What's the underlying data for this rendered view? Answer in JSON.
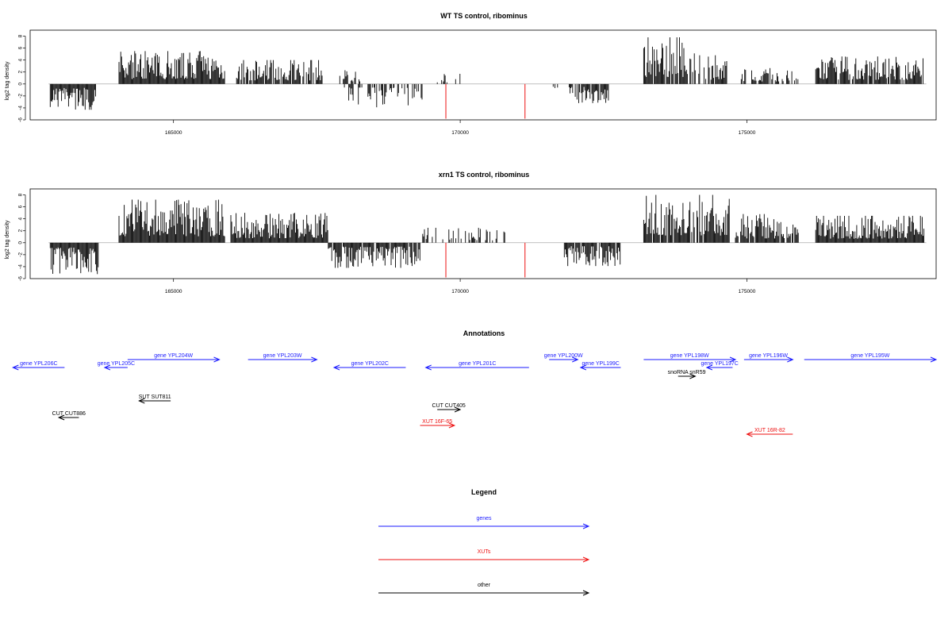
{
  "colors": {
    "gene": "#1a1aff",
    "xut": "#ee1111",
    "other": "#000000",
    "cut_marker": "#ee1111",
    "bar": "#000000",
    "zero_line": "#999999"
  },
  "chart_data": [
    {
      "type": "bar",
      "title": "WT TS control, ribominus",
      "ylabel": "log2 tag density",
      "ylim": [
        -6,
        9
      ],
      "yticks": [
        -6,
        -4,
        -2,
        0,
        2,
        4,
        6,
        8
      ],
      "xlim": [
        162500,
        178300
      ],
      "xticks": [
        165000,
        170000,
        175000
      ],
      "xticklabels": [
        "165000",
        "170000",
        "175000"
      ],
      "cut_markers": [
        169750,
        171130
      ],
      "segments": [
        {
          "x0": 162850,
          "x1": 163650,
          "sign": -1,
          "amp": 4.3,
          "density": 1.0
        },
        {
          "x0": 164050,
          "x1": 165900,
          "sign": 1,
          "amp": 5.5,
          "density": 1.0
        },
        {
          "x0": 166100,
          "x1": 167600,
          "sign": 1,
          "amp": 4.0,
          "density": 0.85
        },
        {
          "x0": 167900,
          "x1": 168300,
          "sign": 1,
          "amp": 2.3,
          "density": 0.4
        },
        {
          "x0": 167950,
          "x1": 169350,
          "sign": -1,
          "amp": 3.9,
          "density": 0.6
        },
        {
          "x0": 169600,
          "x1": 170100,
          "sign": 1,
          "amp": 1.8,
          "density": 0.3
        },
        {
          "x0": 171500,
          "x1": 171700,
          "sign": -1,
          "amp": 1.0,
          "density": 0.2
        },
        {
          "x0": 171900,
          "x1": 172600,
          "sign": -1,
          "amp": 3.2,
          "density": 0.85
        },
        {
          "x0": 173200,
          "x1": 174100,
          "sign": 1,
          "amp": 7.8,
          "density": 0.9
        },
        {
          "x0": 174100,
          "x1": 174650,
          "sign": 1,
          "amp": 4.8,
          "density": 0.8
        },
        {
          "x0": 174900,
          "x1": 175900,
          "sign": 1,
          "amp": 2.8,
          "density": 0.6
        },
        {
          "x0": 176200,
          "x1": 178100,
          "sign": 1,
          "amp": 4.6,
          "density": 0.9
        }
      ]
    },
    {
      "type": "bar",
      "title": "xrn1 TS control, ribominus",
      "ylabel": "log2 tag density",
      "ylim": [
        -6,
        9
      ],
      "yticks": [
        -6,
        -4,
        -2,
        0,
        2,
        4,
        6,
        8
      ],
      "xlim": [
        162500,
        178300
      ],
      "xticks": [
        165000,
        170000,
        175000
      ],
      "xticklabels": [
        "165000",
        "170000",
        "175000"
      ],
      "cut_markers": [
        169750,
        171130
      ],
      "segments": [
        {
          "x0": 162850,
          "x1": 163700,
          "sign": -1,
          "amp": 5.3,
          "density": 1.0
        },
        {
          "x0": 164050,
          "x1": 165900,
          "sign": 1,
          "amp": 7.2,
          "density": 1.0
        },
        {
          "x0": 166000,
          "x1": 167700,
          "sign": 1,
          "amp": 5.0,
          "density": 1.0
        },
        {
          "x0": 167700,
          "x1": 169300,
          "sign": -1,
          "amp": 4.2,
          "density": 0.9
        },
        {
          "x0": 169300,
          "x1": 170800,
          "sign": 1,
          "amp": 2.5,
          "density": 0.3
        },
        {
          "x0": 171800,
          "x1": 172800,
          "sign": -1,
          "amp": 3.9,
          "density": 0.9
        },
        {
          "x0": 173200,
          "x1": 174700,
          "sign": 1,
          "amp": 8.0,
          "density": 0.9
        },
        {
          "x0": 174800,
          "x1": 175900,
          "sign": 1,
          "amp": 4.8,
          "density": 0.9
        },
        {
          "x0": 176200,
          "x1": 178100,
          "sign": 1,
          "amp": 4.5,
          "density": 1.0
        }
      ]
    }
  ],
  "annotations": {
    "title": "Annotations",
    "features": [
      {
        "label": "gene YPL206C",
        "type": "gene",
        "x0": 162200,
        "x1": 163100,
        "dir": -1,
        "row": 1
      },
      {
        "label": "gene YPL205C",
        "type": "gene",
        "x0": 163800,
        "x1": 164200,
        "dir": -1,
        "row": 1
      },
      {
        "label": "gene YPL204W",
        "type": "gene",
        "x0": 164200,
        "x1": 165800,
        "dir": 1,
        "row": 0
      },
      {
        "label": "gene YPL203W",
        "type": "gene",
        "x0": 166300,
        "x1": 167500,
        "dir": 1,
        "row": 0
      },
      {
        "label": "gene YPL202C",
        "type": "gene",
        "x0": 167800,
        "x1": 169050,
        "dir": -1,
        "row": 1
      },
      {
        "label": "gene YPL201C",
        "type": "gene",
        "x0": 169400,
        "x1": 171200,
        "dir": -1,
        "row": 1
      },
      {
        "label": "gene YPL200W",
        "type": "gene",
        "x0": 171550,
        "x1": 172050,
        "dir": 1,
        "row": 0
      },
      {
        "label": "gene YPL199C",
        "type": "gene",
        "x0": 172100,
        "x1": 172800,
        "dir": -1,
        "row": 1
      },
      {
        "label": "gene YPL198W",
        "type": "gene",
        "x0": 173200,
        "x1": 174800,
        "dir": 1,
        "row": 0
      },
      {
        "label": "gene YPL197C",
        "type": "gene",
        "x0": 174300,
        "x1": 174750,
        "dir": -1,
        "row": 1
      },
      {
        "label": "gene YPL196W",
        "type": "gene",
        "x0": 174950,
        "x1": 175800,
        "dir": 1,
        "row": 0
      },
      {
        "label": "gene YPL195W",
        "type": "gene",
        "x0": 176000,
        "x1": 178300,
        "dir": 1,
        "row": 0
      },
      {
        "label": "snoRNA snR59",
        "type": "other",
        "x0": 173800,
        "x1": 174100,
        "dir": 1,
        "row": 2
      },
      {
        "label": "SUT SUT811",
        "type": "other",
        "x0": 164400,
        "x1": 164950,
        "dir": -1,
        "row": 3
      },
      {
        "label": "CUT CUT886",
        "type": "other",
        "x0": 163000,
        "x1": 163350,
        "dir": -1,
        "row": 4
      },
      {
        "label": "CUT CUT405",
        "type": "other",
        "x0": 169600,
        "x1": 170000,
        "dir": 1,
        "row": 5
      },
      {
        "label": "XUT 16F-65",
        "type": "xut",
        "x0": 169300,
        "x1": 169900,
        "dir": 1,
        "row": 6
      },
      {
        "label": "XUT 16R-82",
        "type": "xut",
        "x0": 175000,
        "x1": 175800,
        "dir": -1,
        "row": 7
      }
    ]
  },
  "legend": {
    "title": "Legend",
    "items": [
      {
        "label": "genes",
        "type": "gene"
      },
      {
        "label": "XUTs",
        "type": "xut"
      },
      {
        "label": "other",
        "type": "other"
      }
    ]
  }
}
